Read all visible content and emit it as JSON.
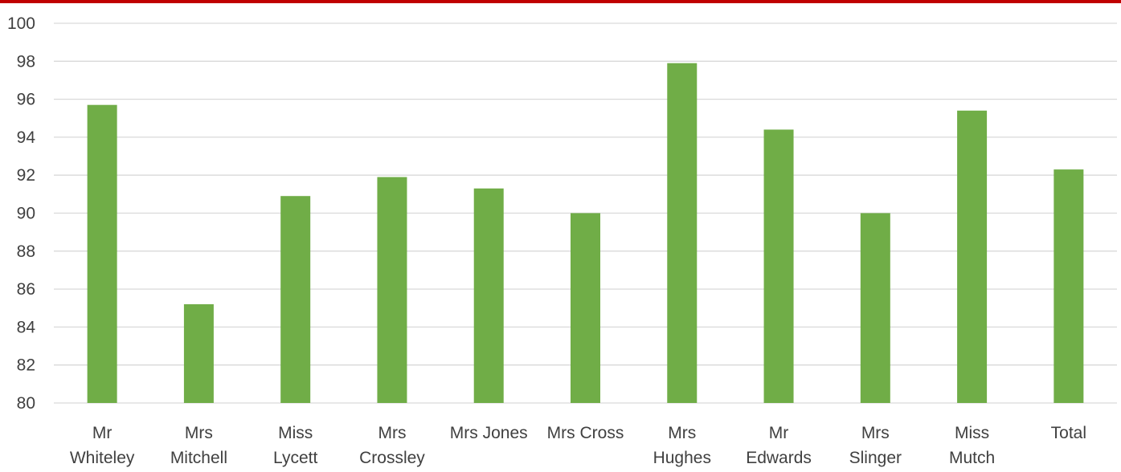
{
  "chart_data": {
    "type": "bar",
    "title": "",
    "xlabel": "",
    "ylabel": "",
    "categories": [
      [
        "Mr",
        "Whiteley"
      ],
      [
        "Mrs",
        "Mitchell"
      ],
      [
        "Miss",
        "Lycett"
      ],
      [
        "Mrs",
        "Crossley"
      ],
      [
        "Mrs Jones"
      ],
      [
        "Mrs Cross"
      ],
      [
        "Mrs",
        "Hughes"
      ],
      [
        "Mr",
        "Edwards"
      ],
      [
        "Mrs",
        "Slinger"
      ],
      [
        "Miss",
        "Mutch"
      ],
      [
        "Total"
      ]
    ],
    "values": [
      95.7,
      85.2,
      90.9,
      91.9,
      91.3,
      90.0,
      97.9,
      94.4,
      90.0,
      95.4,
      92.3
    ],
    "ylim": [
      80,
      100
    ],
    "yticks": [
      80,
      82,
      84,
      86,
      88,
      90,
      92,
      94,
      96,
      98,
      100
    ],
    "grid": true,
    "legend": "none",
    "colors": {
      "bar": "#70ad47",
      "gridline": "#d9d9d9",
      "text": "#404040",
      "top_bar": "#c00000"
    }
  }
}
